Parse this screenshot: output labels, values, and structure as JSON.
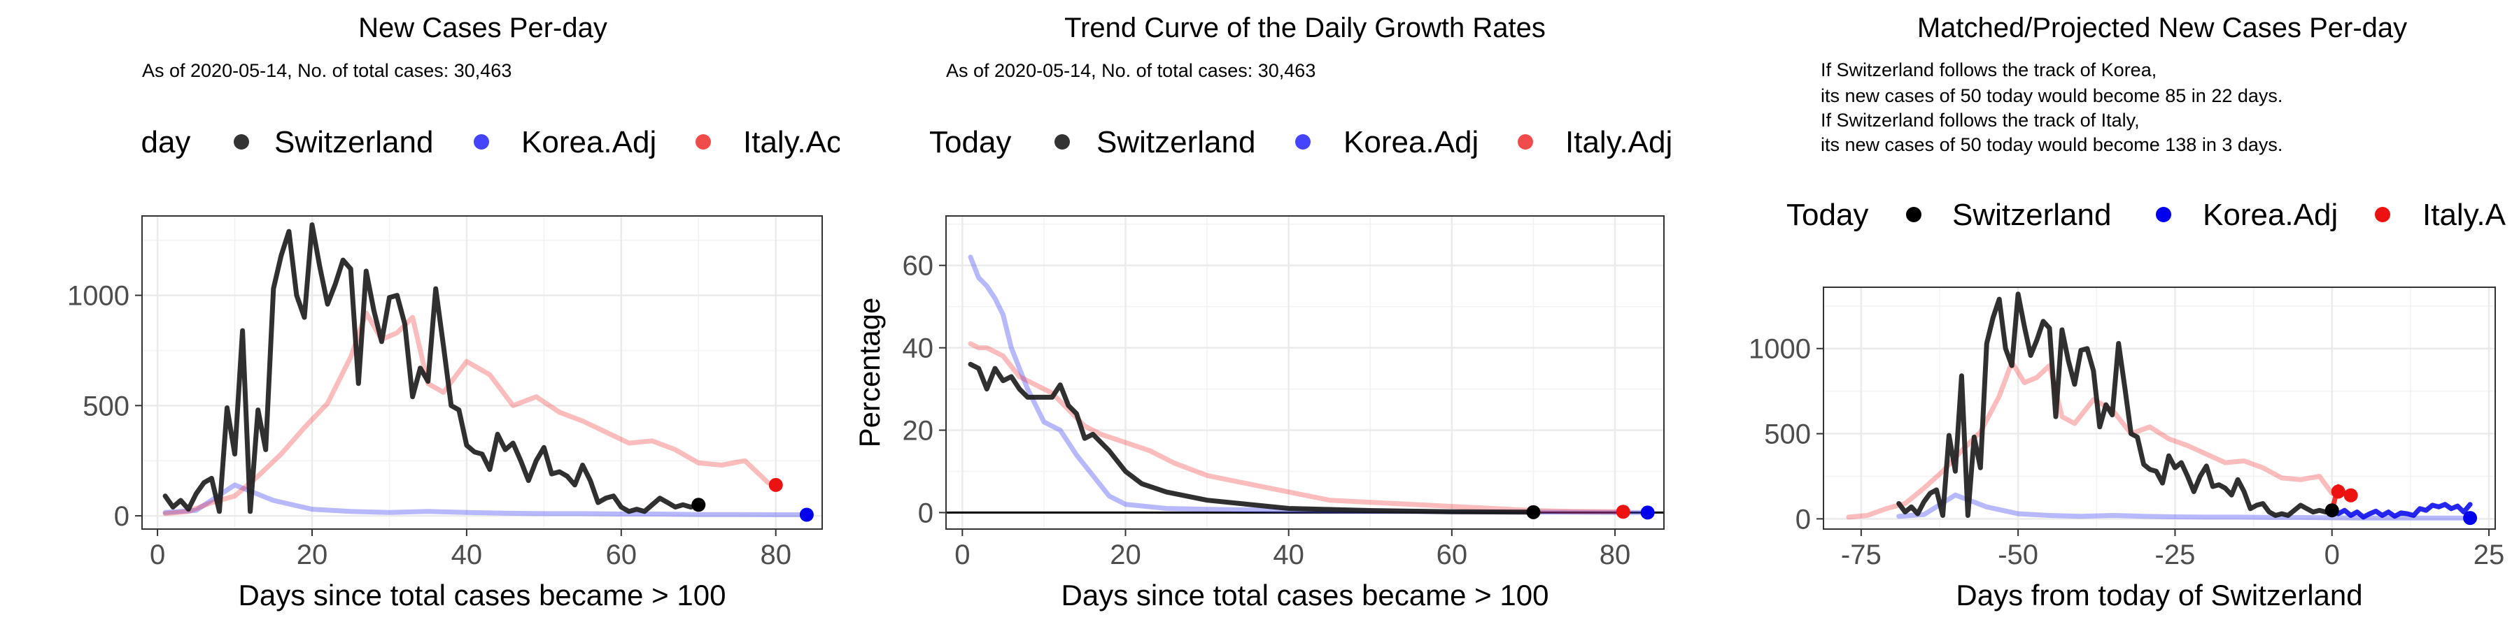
{
  "chart_data": [
    {
      "type": "line",
      "title": "New Cases Per-day",
      "subtitle": [
        "As of 2020-05-14, No. of total cases: 30,463"
      ],
      "legend": {
        "title": "Today",
        "entries": [
          "Switzerland",
          "Korea.Adj",
          "Italy.Adj"
        ],
        "visible_text": [
          "Today",
          "Switzerland",
          "Korea.Adj",
          "Italy.Ac"
        ],
        "position": "top"
      },
      "xlabel": "Days since total cases became > 100",
      "ylabel": "",
      "xlim": [
        -2,
        86
      ],
      "ylim": [
        -60,
        1360
      ],
      "xticks": [
        0,
        20,
        40,
        60,
        80
      ],
      "yticks": [
        0,
        500,
        1000
      ],
      "grid": true,
      "series": [
        {
          "name": "Switzerland",
          "color": "#1a1a1a",
          "alpha": 0.9,
          "x": [
            1,
            2,
            3,
            4,
            5,
            6,
            7,
            8,
            9,
            10,
            11,
            12,
            13,
            14,
            15,
            16,
            17,
            18,
            19,
            20,
            21,
            22,
            23,
            24,
            25,
            26,
            27,
            28,
            29,
            30,
            31,
            32,
            33,
            34,
            35,
            36,
            37,
            38,
            39,
            40,
            41,
            42,
            43,
            44,
            45,
            46,
            47,
            48,
            49,
            50,
            51,
            52,
            53,
            54,
            55,
            56,
            57,
            58,
            59,
            60,
            61,
            62,
            63,
            64,
            65,
            66,
            67,
            68,
            69,
            70
          ],
          "y": [
            90,
            40,
            70,
            30,
            100,
            150,
            170,
            20,
            490,
            280,
            840,
            20,
            480,
            300,
            1030,
            1180,
            1290,
            1000,
            900,
            1320,
            1130,
            960,
            1050,
            1160,
            1120,
            600,
            1110,
            930,
            790,
            990,
            1000,
            870,
            540,
            670,
            610,
            1030,
            770,
            500,
            480,
            320,
            290,
            280,
            210,
            370,
            300,
            330,
            250,
            160,
            250,
            310,
            190,
            200,
            180,
            140,
            230,
            160,
            60,
            80,
            90,
            40,
            20,
            30,
            20,
            50,
            80,
            60,
            40,
            50,
            40,
            50
          ]
        },
        {
          "name": "Korea.Adj",
          "color": "#4d4df7",
          "alpha": 0.4,
          "x": [
            1,
            5,
            10,
            15,
            20,
            25,
            30,
            35,
            40,
            45,
            50,
            55,
            60,
            65,
            70,
            75,
            80,
            84
          ],
          "y": [
            15,
            25,
            140,
            70,
            30,
            20,
            15,
            20,
            15,
            12,
            10,
            10,
            8,
            8,
            6,
            6,
            5,
            5
          ]
        },
        {
          "name": "Italy.Adj",
          "color": "#f02020",
          "alpha": 0.3,
          "x": [
            1,
            4,
            7,
            10,
            13,
            16,
            19,
            22,
            25,
            27,
            29,
            31,
            33,
            35,
            37,
            40,
            43,
            46,
            49,
            52,
            55,
            58,
            61,
            64,
            67,
            70,
            73,
            76,
            79
          ],
          "y": [
            10,
            20,
            60,
            90,
            180,
            280,
            400,
            510,
            720,
            920,
            800,
            830,
            900,
            600,
            560,
            700,
            640,
            500,
            540,
            470,
            430,
            380,
            330,
            340,
            300,
            240,
            230,
            250,
            150
          ]
        }
      ],
      "endpoints": [
        {
          "name": "Switzerland",
          "x": 70,
          "y": 50,
          "color": "#000000"
        },
        {
          "name": "Korea.Adj",
          "x": 84,
          "y": 5,
          "color": "#0000ee"
        },
        {
          "name": "Italy.Adj",
          "x": 80,
          "y": 140,
          "color": "#ee1111"
        }
      ]
    },
    {
      "type": "line",
      "title": "Trend Curve of the Daily Growth Rates",
      "subtitle": [
        "As of 2020-05-14, No. of total cases: 30,463"
      ],
      "legend": {
        "title": "Today",
        "entries": [
          "Switzerland",
          "Korea.Adj",
          "Italy.Adj"
        ],
        "position": "top"
      },
      "xlabel": "Days since total cases became > 100",
      "ylabel": "Percentage",
      "xlim": [
        -2,
        86
      ],
      "ylim": [
        -4,
        72
      ],
      "xticks": [
        0,
        20,
        40,
        60,
        80
      ],
      "yticks": [
        0,
        20,
        40,
        60
      ],
      "grid": true,
      "hline": 0,
      "series": [
        {
          "name": "Switzerland",
          "color": "#1a1a1a",
          "alpha": 0.9,
          "x": [
            1,
            2,
            3,
            4,
            5,
            6,
            7,
            8,
            9,
            10,
            11,
            12,
            13,
            14,
            15,
            16,
            17,
            18,
            20,
            22,
            25,
            30,
            35,
            40,
            50,
            60,
            70
          ],
          "y": [
            36,
            35,
            30,
            35,
            32,
            33,
            30,
            28,
            28,
            28,
            28,
            31,
            26,
            24,
            18,
            19,
            17,
            15,
            10,
            7,
            5,
            3,
            2,
            1,
            0.5,
            0.2,
            0.1
          ]
        },
        {
          "name": "Korea.Adj",
          "color": "#4d4df7",
          "alpha": 0.4,
          "x": [
            1,
            2,
            3,
            4,
            5,
            6,
            7,
            8,
            9,
            10,
            12,
            14,
            16,
            18,
            20,
            25,
            30,
            40,
            50,
            60,
            70,
            84
          ],
          "y": [
            62,
            57,
            55,
            52,
            48,
            40,
            35,
            30,
            26,
            22,
            20,
            14,
            9,
            4,
            2,
            1,
            0.8,
            0.5,
            0.3,
            0.2,
            0.1,
            0
          ]
        },
        {
          "name": "Italy.Adj",
          "color": "#f02020",
          "alpha": 0.3,
          "x": [
            1,
            2,
            3,
            5,
            7,
            9,
            11,
            13,
            15,
            17,
            20,
            23,
            26,
            30,
            35,
            40,
            45,
            50,
            55,
            60,
            65,
            70,
            75,
            81
          ],
          "y": [
            41,
            40,
            40,
            38,
            33,
            31,
            29,
            25,
            21,
            19,
            17,
            15,
            12,
            9,
            7,
            5,
            3,
            2.5,
            2,
            1.5,
            1,
            0.5,
            0.3,
            0.2
          ]
        }
      ],
      "endpoints": [
        {
          "name": "Switzerland",
          "x": 70,
          "y": 0.1,
          "color": "#000000"
        },
        {
          "name": "Korea.Adj",
          "x": 84,
          "y": 0,
          "color": "#0000ee"
        },
        {
          "name": "Italy.Adj",
          "x": 81,
          "y": 0.2,
          "color": "#ee1111"
        }
      ]
    },
    {
      "type": "line",
      "title": "Matched/Projected New Cases Per-day",
      "subtitle": [
        "If Switzerland follows the track of Korea,",
        "its new cases of 50 today would become 85 in 22 days.",
        "If Switzerland follows the track of Italy,",
        "its new cases of 50 today would become 138 in 3 days."
      ],
      "legend": {
        "title": "Today",
        "entries": [
          "Switzerland",
          "Korea.Adj",
          "Italy.Adj"
        ],
        "visible_text": [
          "Today",
          "Switzerland",
          "Korea.Adj",
          "Italy.A"
        ],
        "position": "top"
      },
      "xlabel": "Days from today of Switzerland",
      "ylabel": "",
      "xlim": [
        -81,
        26
      ],
      "ylim": [
        -60,
        1360
      ],
      "xticks": [
        -75,
        -50,
        -25,
        0,
        25
      ],
      "yticks": [
        0,
        500,
        1000
      ],
      "grid": true,
      "series": [
        {
          "name": "Switzerland",
          "color": "#1a1a1a",
          "alpha": 0.9,
          "x": [
            -69,
            -68,
            -67,
            -66,
            -65,
            -64,
            -63,
            -62,
            -61,
            -60,
            -59,
            -58,
            -57,
            -56,
            -55,
            -54,
            -53,
            -52,
            -51,
            -50,
            -49,
            -48,
            -47,
            -46,
            -45,
            -44,
            -43,
            -42,
            -41,
            -40,
            -39,
            -38,
            -37,
            -36,
            -35,
            -34,
            -33,
            -32,
            -31,
            -30,
            -29,
            -28,
            -27,
            -26,
            -25,
            -24,
            -23,
            -22,
            -21,
            -20,
            -19,
            -18,
            -17,
            -16,
            -15,
            -14,
            -13,
            -12,
            -11,
            -10,
            -9,
            -8,
            -7,
            -6,
            -5,
            -4,
            -3,
            -2,
            -1,
            0
          ],
          "y": [
            90,
            40,
            70,
            30,
            100,
            150,
            170,
            20,
            490,
            280,
            840,
            20,
            480,
            300,
            1030,
            1180,
            1290,
            1000,
            900,
            1320,
            1130,
            960,
            1050,
            1160,
            1120,
            600,
            1110,
            930,
            790,
            990,
            1000,
            870,
            540,
            670,
            610,
            1030,
            770,
            500,
            480,
            320,
            290,
            280,
            210,
            370,
            300,
            330,
            250,
            160,
            250,
            310,
            190,
            200,
            180,
            140,
            230,
            160,
            60,
            80,
            90,
            40,
            20,
            30,
            20,
            50,
            80,
            60,
            40,
            50,
            40,
            50
          ]
        },
        {
          "name": "Korea.Adj",
          "color": "#4d4df7",
          "alpha": 0.4,
          "x": [
            -69,
            -65,
            -60,
            -55,
            -50,
            -45,
            -40,
            -35,
            -30,
            -25,
            -20,
            -15,
            -10,
            -5,
            0,
            5,
            10,
            15,
            22
          ],
          "y": [
            15,
            25,
            140,
            70,
            30,
            20,
            15,
            20,
            15,
            12,
            10,
            10,
            8,
            8,
            6,
            5,
            5,
            5,
            5
          ]
        },
        {
          "name": "Italy.Adj",
          "color": "#f02020",
          "alpha": 0.3,
          "x": [
            -77,
            -74,
            -71,
            -68,
            -65,
            -62,
            -59,
            -56,
            -53,
            -51,
            -49,
            -47,
            -45,
            -43,
            -41,
            -38,
            -35,
            -32,
            -29,
            -26,
            -23,
            -20,
            -17,
            -14,
            -11,
            -8,
            -5,
            -2,
            0
          ],
          "y": [
            10,
            20,
            60,
            90,
            180,
            280,
            400,
            510,
            720,
            920,
            800,
            830,
            900,
            600,
            560,
            700,
            640,
            500,
            540,
            470,
            430,
            380,
            330,
            340,
            300,
            240,
            230,
            250,
            150
          ]
        },
        {
          "name": "Korea.Adj (projected)",
          "color": "#0000ee",
          "alpha": 0.85,
          "x": [
            0,
            1,
            2,
            3,
            4,
            5,
            6,
            7,
            8,
            9,
            10,
            11,
            12,
            13,
            14,
            15,
            16,
            17,
            18,
            19,
            20,
            21,
            22
          ],
          "y": [
            50,
            30,
            50,
            20,
            40,
            10,
            30,
            45,
            20,
            40,
            15,
            35,
            30,
            20,
            60,
            50,
            80,
            70,
            85,
            60,
            75,
            40,
            85
          ]
        },
        {
          "name": "Italy.Adj (projected)",
          "color": "#ee1111",
          "alpha": 0.85,
          "x": [
            0,
            1,
            2,
            3
          ],
          "y": [
            50,
            190,
            150,
            138
          ]
        }
      ],
      "endpoints": [
        {
          "name": "Switzerland",
          "x": 0,
          "y": 50,
          "color": "#000000"
        },
        {
          "name": "Korea.Adj",
          "x": 22,
          "y": 5,
          "color": "#0000ee"
        },
        {
          "name": "Italy.Adj",
          "x": 1,
          "y": 160,
          "color": "#ee1111"
        },
        {
          "name": "Italy.Adj",
          "x": 3,
          "y": 138,
          "color": "#ee1111"
        }
      ]
    }
  ]
}
